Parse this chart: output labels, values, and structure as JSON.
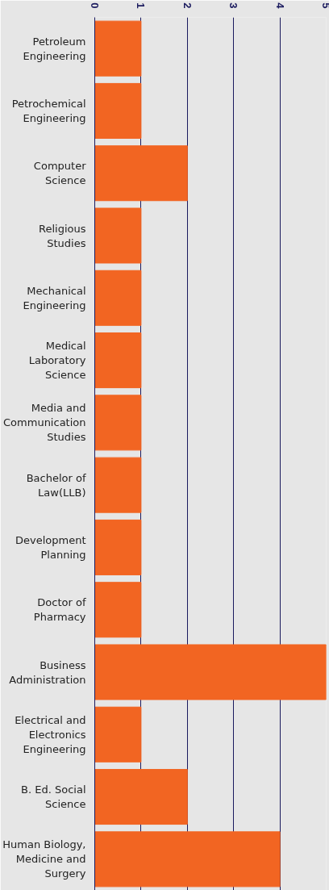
{
  "chart_data": {
    "type": "bar",
    "orientation": "horizontal",
    "categories": [
      "Petroleum Engineering",
      "Petrochemical Engineering",
      "Computer Science",
      "Religious Studies",
      "Mechanical Engineering",
      "Medical Laboratory Science",
      "Media and Communication Studies",
      "Bachelor of Law(LLB)",
      "Development Planning",
      "Doctor of Pharmacy",
      "Business Administration",
      "Electrical and Electronics Engineering",
      "B. Ed. Social Science",
      "Human Biology, Medicine and Surgery"
    ],
    "values": [
      1,
      1,
      2,
      1,
      1,
      1,
      1,
      1,
      1,
      1,
      5,
      1,
      2,
      4
    ],
    "color": "#f26522",
    "xlim": [
      0,
      5
    ],
    "xticks": [
      0,
      1,
      2,
      3,
      4,
      5
    ],
    "grid": "x"
  }
}
